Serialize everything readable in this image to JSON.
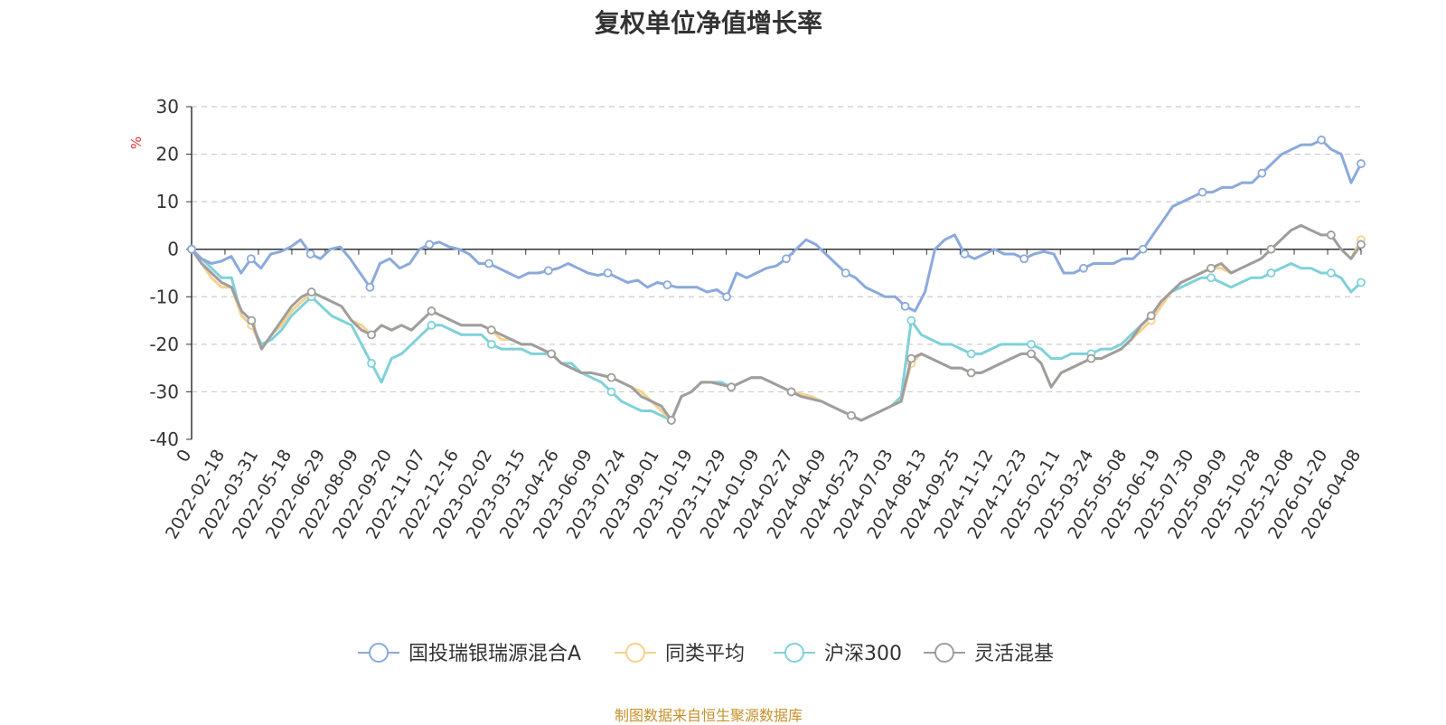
{
  "chart_data": {
    "type": "line",
    "title": "复权单位净值增长率",
    "ylabel": "%",
    "xlabel": "",
    "ylim": [
      -40,
      30
    ],
    "yticks": [
      30,
      20,
      10,
      0,
      -10,
      -20,
      -30,
      -40
    ],
    "x_labels": [
      "0",
      "2022-02-18",
      "2022-03-31",
      "2022-05-18",
      "2022-06-29",
      "2022-08-09",
      "2022-09-20",
      "2022-11-07",
      "2022-12-16",
      "2023-02-02",
      "2023-03-15",
      "2023-04-26",
      "2023-06-09",
      "2023-07-24",
      "2023-09-01",
      "2023-10-19",
      "2023-11-29",
      "2024-01-09",
      "2024-02-27",
      "2024-04-09",
      "2024-05-23",
      "2024-07-03",
      "2024-08-13",
      "2024-09-25",
      "2024-11-12",
      "2024-12-23",
      "2025-02-11",
      "2025-03-24",
      "2025-05-08",
      "2025-06-19",
      "2025-07-30",
      "2025-09-09",
      "2025-10-28",
      "2025-12-08",
      "2026-01-20",
      "2026-04-08"
    ],
    "grid": "dashed-horizontal",
    "legend_position": "bottom-center",
    "series": [
      {
        "name": "国投瑞银瑞源混合A",
        "color": "#8ba9dc",
        "values": [
          0,
          -2,
          -3,
          -2.5,
          -1.5,
          -5,
          -2,
          -4,
          -1,
          -0.5,
          0.5,
          2,
          -1,
          -2,
          0,
          0.5,
          -2,
          -5,
          -8,
          -3,
          -2,
          -4,
          -3,
          0,
          1,
          1.5,
          0.5,
          0,
          -1,
          -3,
          -3,
          -4,
          -5,
          -6,
          -5,
          -5,
          -4.5,
          -4,
          -3,
          -4,
          -5,
          -5.5,
          -5,
          -6,
          -7,
          -6.5,
          -8,
          -7,
          -7.5,
          -8,
          -8,
          -8,
          -9,
          -8.5,
          -10,
          -5,
          -6,
          -5,
          -4,
          -3.5,
          -2,
          0,
          2,
          1,
          -1,
          -3,
          -5,
          -6,
          -8,
          -9,
          -10,
          -10,
          -12,
          -13,
          -9,
          0,
          2,
          3,
          -1,
          -2,
          -1,
          0,
          -1,
          -1,
          -2,
          -1,
          -0.5,
          -1,
          -5,
          -5,
          -4,
          -3,
          -3,
          -3,
          -2,
          -2,
          0,
          3,
          6,
          9,
          10,
          11,
          12,
          12,
          13,
          13,
          14,
          14,
          16,
          18,
          20,
          21,
          22,
          22,
          23,
          21,
          20,
          14,
          18
        ]
      },
      {
        "name": "同类平均",
        "color": "#f9d08c",
        "values": [
          0,
          -3,
          -6,
          -8,
          -8,
          -14,
          -16,
          -21,
          -18,
          -16,
          -13,
          -11,
          -9,
          -10,
          -11,
          -12,
          -15,
          -16,
          -18,
          -16,
          -17,
          -16,
          -17,
          -15,
          -13,
          -14,
          -15,
          -16,
          -16,
          -16,
          -17,
          -19,
          -19,
          -20,
          -20,
          -21,
          -22,
          -24,
          -25,
          -26,
          -26,
          -26.5,
          -27,
          -28,
          -29,
          -30,
          -32,
          -34,
          -36,
          -31,
          -30,
          -28,
          -28,
          -28.5,
          -29,
          -28,
          -27,
          -27,
          -28,
          -29,
          -30,
          -30.5,
          -31,
          -32,
          -33,
          -34,
          -35,
          -36,
          -35,
          -34,
          -33,
          -32,
          -24,
          -22,
          -23,
          -24,
          -25,
          -25,
          -26,
          -26,
          -25,
          -24,
          -23,
          -22,
          -22,
          -24,
          -29,
          -26,
          -25,
          -24,
          -23,
          -23,
          -22,
          -21,
          -19,
          -17,
          -15,
          -12,
          -9,
          -7,
          -6,
          -5,
          -4,
          -4,
          -5,
          -4,
          -3,
          -2,
          0,
          2,
          4,
          5,
          4,
          3,
          3,
          0,
          -2,
          2
        ]
      },
      {
        "name": "沪深300",
        "color": "#7fd1d9",
        "values": [
          0,
          -2,
          -4,
          -6,
          -6,
          -14,
          -16,
          -20,
          -19,
          -17,
          -14,
          -12,
          -10,
          -12,
          -14,
          -15,
          -16,
          -20,
          -24,
          -28,
          -23,
          -22,
          -20,
          -18,
          -16,
          -16,
          -17,
          -18,
          -18,
          -18,
          -20,
          -21,
          -21,
          -21,
          -22,
          -22,
          -22,
          -24,
          -24,
          -26,
          -27,
          -28,
          -30,
          -32,
          -33,
          -34,
          -34,
          -35,
          -36,
          -31,
          -30,
          -28,
          -28,
          -28,
          -29,
          -28,
          -27,
          -27,
          -28,
          -29,
          -30,
          -30.5,
          -31,
          -32,
          -33,
          -34,
          -35,
          -36,
          -35,
          -34,
          -33,
          -31,
          -15,
          -18,
          -19,
          -20,
          -20,
          -21,
          -22,
          -22,
          -21,
          -20,
          -20,
          -20,
          -20,
          -21,
          -23,
          -23,
          -22,
          -22,
          -22,
          -21,
          -21,
          -20,
          -18,
          -16,
          -14,
          -11,
          -9,
          -8,
          -7,
          -6,
          -6,
          -7,
          -8,
          -7,
          -6,
          -6,
          -5,
          -4,
          -3,
          -4,
          -4,
          -5,
          -5,
          -6,
          -9,
          -7
        ]
      },
      {
        "name": "灵活混基",
        "color": "#9e9e9e",
        "values": [
          0,
          -3,
          -5,
          -7,
          -8,
          -13,
          -15,
          -21,
          -18,
          -15,
          -12,
          -10,
          -9,
          -10,
          -11,
          -12,
          -15,
          -17,
          -18,
          -16,
          -17,
          -16,
          -17,
          -15,
          -13,
          -14,
          -15,
          -16,
          -16,
          -16,
          -17,
          -18,
          -19,
          -20,
          -20,
          -21,
          -22,
          -24,
          -25,
          -26,
          -26,
          -26.5,
          -27,
          -28,
          -29,
          -31,
          -32,
          -33,
          -36,
          -31,
          -30,
          -28,
          -28,
          -28.5,
          -29,
          -28,
          -27,
          -27,
          -28,
          -29,
          -30,
          -31,
          -31.5,
          -32,
          -33,
          -34,
          -35,
          -36,
          -35,
          -34,
          -33,
          -32,
          -23,
          -22,
          -23,
          -24,
          -25,
          -25,
          -26,
          -26,
          -25,
          -24,
          -23,
          -22,
          -22,
          -24,
          -29,
          -26,
          -25,
          -24,
          -23,
          -23,
          -22,
          -21,
          -19,
          -16,
          -14,
          -11,
          -9,
          -7,
          -6,
          -5,
          -4,
          -3,
          -5,
          -4,
          -3,
          -2,
          0,
          2,
          4,
          5,
          4,
          3,
          3,
          0,
          -2,
          1
        ]
      }
    ]
  },
  "source_text": "制图数据来自恒生聚源数据库"
}
